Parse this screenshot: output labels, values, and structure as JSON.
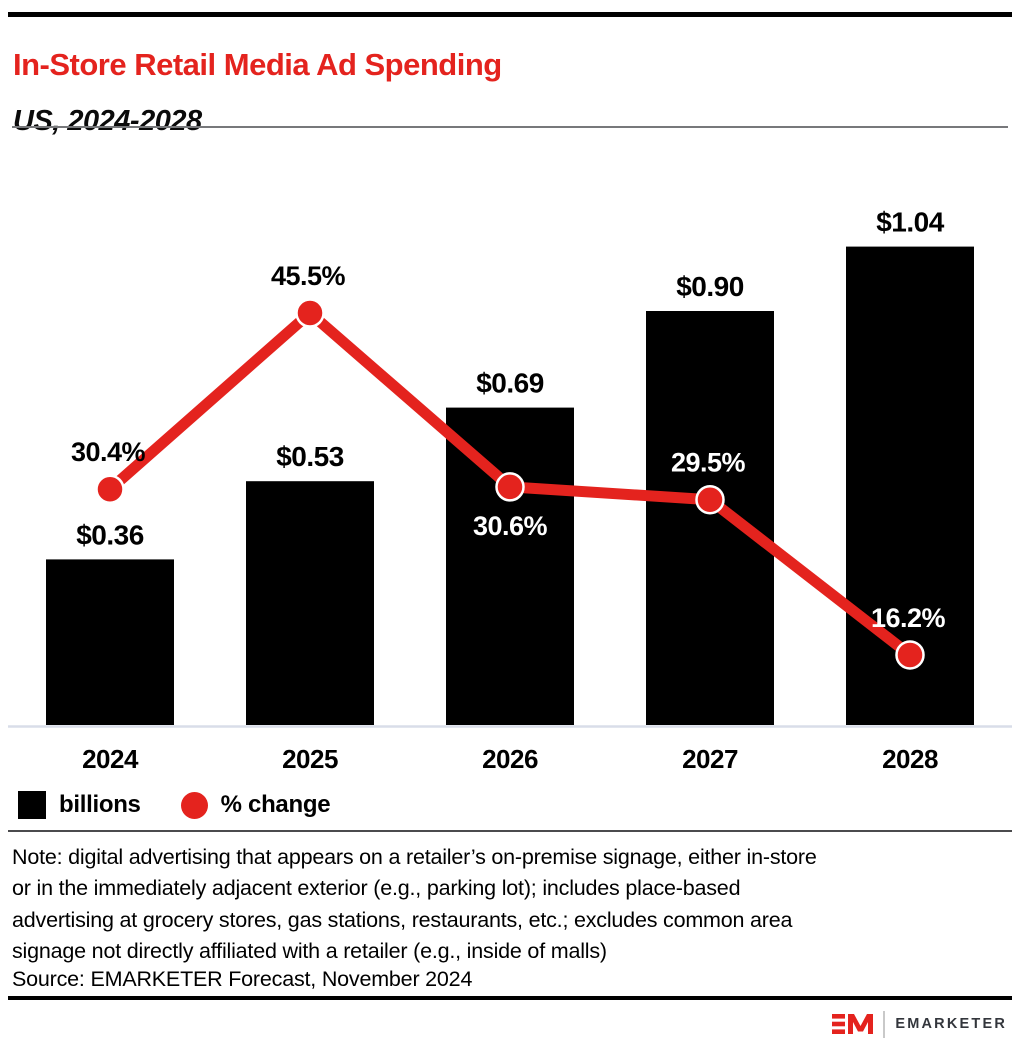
{
  "header": {
    "title": "In-Store Retail Media Ad Spending",
    "subtitle": "US, 2024-2028"
  },
  "chart_data": {
    "type": "bar",
    "subtype": "bar+line combo",
    "categories": [
      "2024",
      "2025",
      "2026",
      "2027",
      "2028"
    ],
    "series": [
      {
        "name": "billions",
        "type": "bar",
        "color": "#000000",
        "values": [
          0.36,
          0.53,
          0.69,
          0.9,
          1.04
        ],
        "labels": [
          "$0.36",
          "$0.53",
          "$0.69",
          "$0.90",
          "$1.04"
        ]
      },
      {
        "name": "% change",
        "type": "line",
        "color": "#e4231e",
        "values": [
          30.4,
          45.5,
          30.6,
          29.5,
          16.2
        ],
        "labels": [
          "30.4%",
          "45.5%",
          "30.6%",
          "29.5%",
          "16.2%"
        ],
        "label_placement": [
          "above",
          "above",
          "below",
          "above",
          "above"
        ],
        "label_colors": [
          "#000000",
          "#000000",
          "#ffffff",
          "#ffffff",
          "#ffffff"
        ]
      }
    ],
    "legend": {
      "position": "bottom-left",
      "items": [
        {
          "label": "billions",
          "swatch": "square",
          "color": "#000000"
        },
        {
          "label": "% change",
          "swatch": "circle",
          "color": "#e4231e"
        }
      ]
    },
    "axes": {
      "x_ticks": [
        "2024",
        "2025",
        "2026",
        "2027",
        "2028"
      ],
      "y_axis_visible": false,
      "grid": false,
      "baseline_color": "#d9dde9"
    },
    "title": "In-Store Retail Media Ad Spending",
    "subtitle": "US, 2024-2028"
  },
  "note": {
    "lines": [
      "Note: digital advertising that appears on a retailer’s on-premise signage, either in-store",
      "or in the immediately adjacent exterior (e.g., parking lot); includes place-based",
      "advertising at grocery stores, gas stations, restaurants, etc.; excludes common area",
      "signage not directly affiliated with a retailer (e.g., inside of malls)"
    ]
  },
  "source": "Source: EMARKETER Forecast, November 2024",
  "footer": {
    "brand": "EMARKETER"
  },
  "colors": {
    "accent_red": "#e4231e",
    "bar_black": "#000000",
    "baseline": "#d9dde9",
    "brand_text": "#33363c"
  }
}
